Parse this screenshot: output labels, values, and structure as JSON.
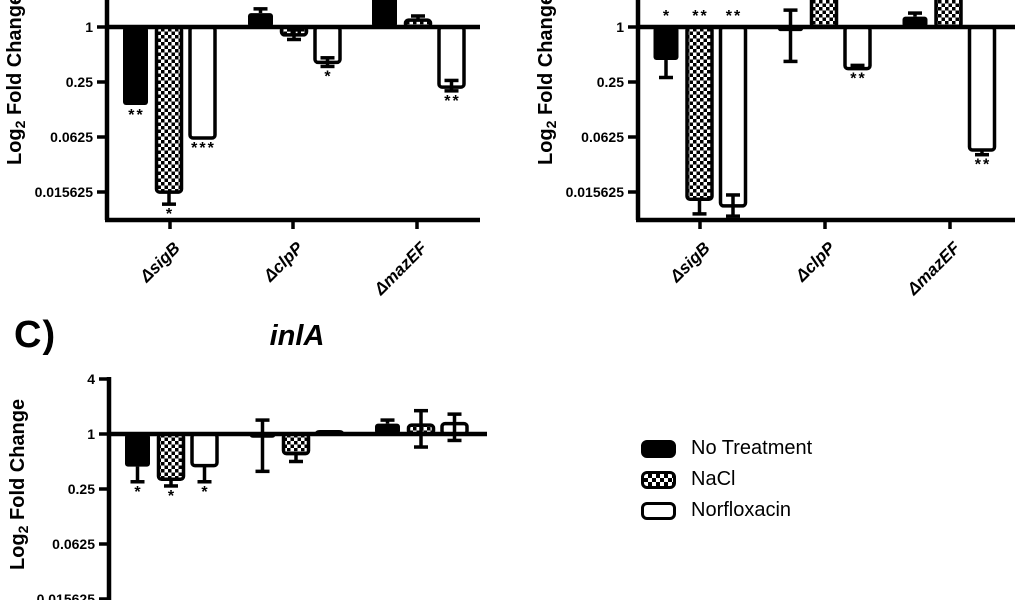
{
  "figure": {
    "background": "#ffffff",
    "ink": "#000000",
    "panel_c_letter": "C)",
    "panel_c_title": "inlA",
    "y_axis_label": {
      "prefix": "Log",
      "sub": "2",
      "suffix": " Fold Change"
    }
  },
  "legend": {
    "items": [
      {
        "label": "No Treatment",
        "pattern": "solid"
      },
      {
        "label": "NaCl",
        "pattern": "checker"
      },
      {
        "label": "Norfloxacin",
        "pattern": "open"
      }
    ]
  },
  "chart_data": [
    {
      "id": "panel-top-left",
      "type": "bar",
      "title": "",
      "title_visible": false,
      "y_scale": "log2",
      "ylabel": "Log2 Fold Change",
      "y_ticks": [
        "1",
        "0.25",
        "0.0625",
        "0.015625"
      ],
      "y_tick_values": [
        1,
        0.25,
        0.0625,
        0.015625
      ],
      "baseline": 1,
      "categories": [
        "ΔsigB",
        "ΔclpP",
        "ΔmazEF"
      ],
      "category_labels_visible": true,
      "series": [
        {
          "name": "No Treatment",
          "pattern": "solid",
          "values": [
            0.14,
            1.42,
            2.6
          ],
          "top_clipped": [
            false,
            false,
            true
          ],
          "err_lo": [
            null,
            null,
            null
          ],
          "err_hi": [
            null,
            1.58,
            null
          ],
          "sig": [
            "**",
            "",
            ""
          ],
          "sig_side": [
            "below",
            "",
            ""
          ]
        },
        {
          "name": "NaCl",
          "pattern": "checker",
          "values": [
            0.0156,
            0.82,
            1.19
          ],
          "top_clipped": [
            false,
            false,
            false
          ],
          "err_lo": [
            0.0115,
            0.73,
            null
          ],
          "err_hi": [
            null,
            0.93,
            1.32
          ],
          "sig": [
            "*",
            "",
            ""
          ],
          "sig_side": [
            "below",
            "",
            ""
          ]
        },
        {
          "name": "Norfloxacin",
          "pattern": "open",
          "values": [
            0.061,
            0.41,
            0.22
          ],
          "top_clipped": [
            false,
            false,
            false
          ],
          "err_lo": [
            null,
            0.37,
            0.2
          ],
          "err_hi": [
            null,
            0.46,
            0.26
          ],
          "sig": [
            "***",
            "*",
            "**"
          ],
          "sig_side": [
            "below",
            "below",
            "below"
          ]
        }
      ]
    },
    {
      "id": "panel-top-right",
      "type": "bar",
      "title": "",
      "title_visible": false,
      "y_scale": "log2",
      "ylabel": "Log2 Fold Change",
      "y_ticks": [
        "1",
        "0.25",
        "0.0625",
        "0.015625"
      ],
      "y_tick_values": [
        1,
        0.25,
        0.0625,
        0.015625
      ],
      "baseline": 1,
      "categories": [
        "ΔsigB",
        "ΔclpP",
        "ΔmazEF"
      ],
      "category_labels_visible": true,
      "series": [
        {
          "name": "No Treatment",
          "pattern": "solid",
          "values": [
            0.435,
            0.9,
            1.3
          ],
          "top_clipped": [
            false,
            false,
            false
          ],
          "err_lo": [
            0.28,
            0.42,
            null
          ],
          "err_hi": [
            null,
            1.53,
            1.42
          ],
          "sig": [
            "*",
            "",
            ""
          ],
          "sig_side": [
            "above",
            "",
            ""
          ]
        },
        {
          "name": "NaCl",
          "pattern": "checker",
          "values": [
            0.013,
            2.6,
            2.6
          ],
          "top_clipped": [
            false,
            true,
            true
          ],
          "err_lo": [
            0.009,
            null,
            null
          ],
          "err_hi": [
            null,
            null,
            null
          ],
          "sig": [
            "**",
            "",
            ""
          ],
          "sig_side": [
            "above",
            "",
            ""
          ]
        },
        {
          "name": "Norfloxacin",
          "pattern": "open",
          "values": [
            0.011,
            0.35,
            0.045
          ],
          "top_clipped": [
            false,
            false,
            false
          ],
          "err_lo": [
            0.0085,
            null,
            0.04
          ],
          "err_hi": [
            0.0145,
            0.38,
            null
          ],
          "sig": [
            "**",
            "**",
            "**"
          ],
          "sig_side": [
            "above",
            "below",
            "below"
          ]
        }
      ]
    },
    {
      "id": "panel-c",
      "type": "bar",
      "title": "inlA",
      "title_visible": true,
      "y_scale": "log2",
      "ylabel": "Log2 Fold Change",
      "y_ticks": [
        "4",
        "1",
        "0.25",
        "0.0625",
        "0.015625"
      ],
      "y_tick_values": [
        4,
        1,
        0.25,
        0.0625,
        0.015625
      ],
      "baseline": 1,
      "categories": [
        "",
        "",
        ""
      ],
      "category_labels_visible": false,
      "series": [
        {
          "name": "No Treatment",
          "pattern": "solid",
          "values": [
            0.44,
            0.91,
            1.3
          ],
          "top_clipped": [
            false,
            false,
            false
          ],
          "err_lo": [
            0.3,
            0.39,
            null
          ],
          "err_hi": [
            null,
            1.42,
            1.42
          ],
          "sig": [
            "*",
            "",
            ""
          ],
          "sig_side": [
            "below",
            "",
            ""
          ]
        },
        {
          "name": "NaCl",
          "pattern": "checker",
          "values": [
            0.32,
            0.61,
            1.25
          ],
          "top_clipped": [
            false,
            false,
            false
          ],
          "err_lo": [
            0.27,
            0.5,
            0.72
          ],
          "err_hi": [
            null,
            null,
            1.8
          ],
          "sig": [
            "*",
            "",
            ""
          ],
          "sig_side": [
            "below",
            "",
            ""
          ]
        },
        {
          "name": "Norfloxacin",
          "pattern": "open",
          "values": [
            0.45,
            1.06,
            1.3
          ],
          "top_clipped": [
            false,
            false,
            false
          ],
          "err_lo": [
            0.3,
            null,
            0.85
          ],
          "err_hi": [
            null,
            null,
            1.65
          ],
          "sig": [
            "*",
            "",
            ""
          ],
          "sig_side": [
            "below",
            "",
            ""
          ]
        }
      ]
    }
  ]
}
